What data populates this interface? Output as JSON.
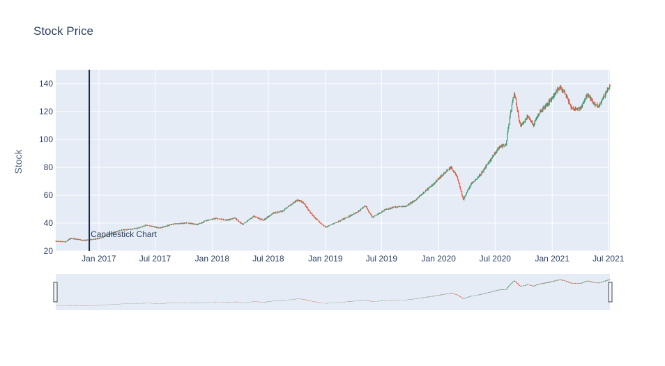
{
  "chart_data": {
    "type": "candlestick",
    "title": "Stock Price",
    "ylabel": "Stock",
    "xlabel": "",
    "x_range": [
      "2016-08-15",
      "2021-07-06"
    ],
    "ylim": [
      20,
      150
    ],
    "y_ticks": [
      20,
      40,
      60,
      80,
      100,
      120,
      140
    ],
    "x_ticks": [
      {
        "date": "2017-01-01",
        "label": "Jan 2017"
      },
      {
        "date": "2017-07-01",
        "label": "Jul 2017"
      },
      {
        "date": "2018-01-01",
        "label": "Jan 2018"
      },
      {
        "date": "2018-07-01",
        "label": "Jul 2018"
      },
      {
        "date": "2019-01-01",
        "label": "Jan 2019"
      },
      {
        "date": "2019-07-01",
        "label": "Jul 2019"
      },
      {
        "date": "2020-01-01",
        "label": "Jan 2020"
      },
      {
        "date": "2020-07-01",
        "label": "Jul 2020"
      },
      {
        "date": "2021-01-01",
        "label": "Jan 2021"
      },
      {
        "date": "2021-07-01",
        "label": "Jul 2021"
      }
    ],
    "price_path": [
      [
        "2016-08-15",
        27
      ],
      [
        "2016-09-15",
        26.5
      ],
      [
        "2016-10-01",
        29
      ],
      [
        "2016-10-20",
        28.5
      ],
      [
        "2016-11-15",
        27.5
      ],
      [
        "2016-12-01",
        28
      ],
      [
        "2017-01-01",
        29
      ],
      [
        "2017-02-15",
        33
      ],
      [
        "2017-03-15",
        35
      ],
      [
        "2017-05-01",
        36
      ],
      [
        "2017-06-01",
        38.5
      ],
      [
        "2017-07-15",
        36.5
      ],
      [
        "2017-09-01",
        39.5
      ],
      [
        "2017-10-15",
        40
      ],
      [
        "2017-11-15",
        39
      ],
      [
        "2017-12-15",
        42
      ],
      [
        "2018-01-15",
        43.5
      ],
      [
        "2018-02-15",
        42
      ],
      [
        "2018-03-15",
        43.5
      ],
      [
        "2018-04-10",
        39
      ],
      [
        "2018-05-15",
        45
      ],
      [
        "2018-06-15",
        42
      ],
      [
        "2018-07-15",
        47
      ],
      [
        "2018-08-15",
        48.5
      ],
      [
        "2018-09-10",
        53
      ],
      [
        "2018-10-01",
        56.5
      ],
      [
        "2018-10-20",
        55
      ],
      [
        "2018-11-15",
        47
      ],
      [
        "2018-12-01",
        43
      ],
      [
        "2019-01-01",
        37
      ],
      [
        "2019-02-01",
        40
      ],
      [
        "2019-03-15",
        44.5
      ],
      [
        "2019-04-15",
        48
      ],
      [
        "2019-05-10",
        52.5
      ],
      [
        "2019-06-01",
        44
      ],
      [
        "2019-07-15",
        50
      ],
      [
        "2019-08-15",
        51.5
      ],
      [
        "2019-09-15",
        52
      ],
      [
        "2019-10-15",
        56
      ],
      [
        "2019-11-15",
        62
      ],
      [
        "2019-12-15",
        68
      ],
      [
        "2020-01-15",
        75
      ],
      [
        "2020-02-10",
        80
      ],
      [
        "2020-03-01",
        73
      ],
      [
        "2020-03-20",
        57
      ],
      [
        "2020-04-15",
        68
      ],
      [
        "2020-05-15",
        75
      ],
      [
        "2020-06-15",
        85
      ],
      [
        "2020-07-15",
        95
      ],
      [
        "2020-08-05",
        96
      ],
      [
        "2020-08-20",
        120
      ],
      [
        "2020-09-01",
        133
      ],
      [
        "2020-09-20",
        109
      ],
      [
        "2020-10-15",
        117
      ],
      [
        "2020-11-01",
        110
      ],
      [
        "2020-11-20",
        119
      ],
      [
        "2020-12-15",
        125
      ],
      [
        "2021-01-05",
        131
      ],
      [
        "2021-01-25",
        138
      ],
      [
        "2021-02-10",
        134
      ],
      [
        "2021-03-05",
        122
      ],
      [
        "2021-04-01",
        122
      ],
      [
        "2021-04-25",
        132
      ],
      [
        "2021-05-15",
        126
      ],
      [
        "2021-06-01",
        124
      ],
      [
        "2021-06-15",
        130
      ],
      [
        "2021-07-06",
        139
      ]
    ],
    "annotation": {
      "text": "Candlestick Chart",
      "date": "2016-12-01",
      "y": 29
    },
    "shape": {
      "type": "vertical-line",
      "date": "2016-12-01"
    },
    "rangeslider": true,
    "colors": {
      "increasing": "#3d9970",
      "decreasing": "#ef553b",
      "plot_bg": "#e5ecf6",
      "grid": "#ffffff",
      "vline": "#1b2a4a",
      "text": "#2a3f5f"
    }
  }
}
